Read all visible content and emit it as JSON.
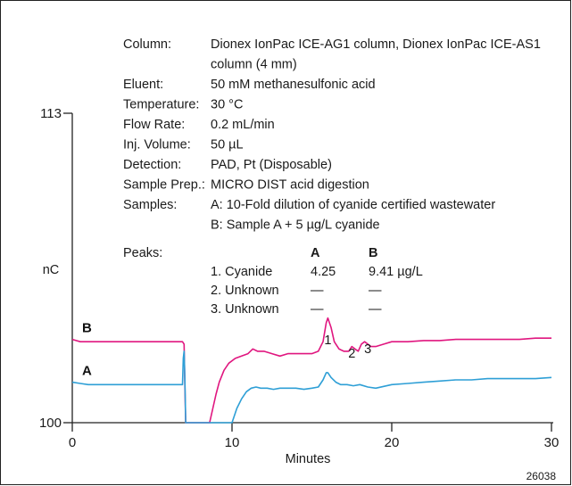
{
  "chart_data": {
    "type": "line",
    "figure_id": "26038",
    "xlabel": "Minutes",
    "ylabel": "nC",
    "xlim": [
      0,
      30
    ],
    "ylim": [
      100,
      113
    ],
    "x_ticks": [
      "0",
      "10",
      "20",
      "30"
    ],
    "y_ticks": [
      "100",
      "113"
    ],
    "conditions": [
      {
        "label": "Column:",
        "value": "Dionex IonPac ICE-AG1 column, Dionex IonPac ICE-AS1"
      },
      {
        "label": "",
        "value": "column (4 mm)"
      },
      {
        "label": "Eluent:",
        "value": "50 mM methanesulfonic acid"
      },
      {
        "label": "Temperature:",
        "value": "30 °C"
      },
      {
        "label": "Flow Rate:",
        "value": "0.2 mL/min"
      },
      {
        "label": "Inj. Volume:",
        "value": "50 µL"
      },
      {
        "label": "Detection:",
        "value": "PAD, Pt (Disposable)"
      },
      {
        "label": "Sample Prep.:",
        "value": "MICRO DIST acid digestion"
      },
      {
        "label": "Samples:",
        "value": "A: 10-Fold dilution of cyanide certified wastewater"
      },
      {
        "label": "",
        "value": "B: Sample A + 5 µg/L cyanide"
      }
    ],
    "peaks_table": {
      "label": "Peaks:",
      "headers": [
        "A",
        "B"
      ],
      "rows": [
        {
          "name": "1. Cyanide",
          "a": "4.25",
          "b": "9.41 µg/L"
        },
        {
          "name": "2. Unknown",
          "a": "—",
          "b": "—"
        },
        {
          "name": "3. Unknown",
          "a": "—",
          "b": "—"
        }
      ]
    },
    "peak_labels": [
      {
        "text": "1",
        "x": 16.0
      },
      {
        "text": "2",
        "x": 17.5
      },
      {
        "text": "3",
        "x": 18.5
      }
    ],
    "series": [
      {
        "name": "B",
        "color": "#e0167f",
        "x": [
          0,
          0.5,
          1,
          2,
          3,
          4,
          5,
          6,
          6.9,
          7.0,
          7.05,
          7.1,
          8.6,
          8.8,
          9.0,
          9.2,
          9.5,
          9.8,
          10.2,
          10.6,
          11.0,
          11.3,
          11.6,
          12.0,
          12.5,
          13.0,
          13.5,
          14.0,
          14.5,
          15.0,
          15.4,
          15.7,
          15.9,
          16.0,
          16.2,
          16.4,
          16.7,
          17.0,
          17.3,
          17.5,
          17.7,
          17.9,
          18.1,
          18.3,
          18.5,
          18.7,
          19.0,
          19.5,
          20.0,
          21.0,
          22.0,
          23.0,
          24.0,
          25.0,
          26.0,
          27.0,
          28.0,
          29.0,
          30.0
        ],
        "y": [
          103.5,
          103.4,
          103.4,
          103.4,
          103.4,
          103.4,
          103.4,
          103.4,
          103.4,
          103.3,
          101.5,
          100.0,
          100.0,
          100.6,
          101.2,
          101.7,
          102.2,
          102.5,
          102.7,
          102.8,
          102.9,
          103.1,
          103.0,
          103.0,
          102.9,
          102.8,
          102.9,
          102.9,
          102.9,
          102.9,
          103.0,
          103.4,
          104.2,
          104.4,
          104.0,
          103.4,
          103.1,
          103.0,
          103.0,
          103.2,
          103.1,
          103.0,
          103.3,
          103.4,
          103.3,
          103.2,
          103.2,
          103.3,
          103.4,
          103.4,
          103.45,
          103.45,
          103.5,
          103.5,
          103.5,
          103.5,
          103.5,
          103.55,
          103.55
        ]
      },
      {
        "name": "A",
        "color": "#2e9fd6",
        "x": [
          0,
          0.5,
          1,
          2,
          3,
          4,
          5,
          6,
          6.9,
          6.95,
          7.0,
          7.05,
          7.1,
          7.15,
          10.0,
          10.3,
          10.6,
          10.9,
          11.2,
          11.5,
          11.8,
          12.2,
          12.6,
          13.0,
          13.5,
          14.0,
          14.5,
          15.0,
          15.4,
          15.7,
          15.9,
          16.0,
          16.2,
          16.5,
          16.8,
          17.2,
          17.6,
          18.0,
          18.5,
          19.0,
          20.0,
          21.0,
          22.0,
          23.0,
          24.0,
          25.0,
          26.0,
          27.0,
          28.0,
          29.0,
          30.0
        ],
        "y": [
          101.7,
          101.65,
          101.6,
          101.6,
          101.6,
          101.6,
          101.6,
          101.6,
          101.6,
          102.7,
          103.0,
          101.8,
          100.0,
          100.0,
          100.0,
          100.6,
          101.0,
          101.3,
          101.45,
          101.5,
          101.45,
          101.45,
          101.4,
          101.45,
          101.45,
          101.45,
          101.4,
          101.45,
          101.5,
          101.8,
          102.1,
          102.1,
          101.9,
          101.7,
          101.6,
          101.6,
          101.55,
          101.6,
          101.5,
          101.45,
          101.6,
          101.65,
          101.7,
          101.75,
          101.8,
          101.8,
          101.85,
          101.85,
          101.85,
          101.85,
          101.9
        ]
      }
    ]
  }
}
